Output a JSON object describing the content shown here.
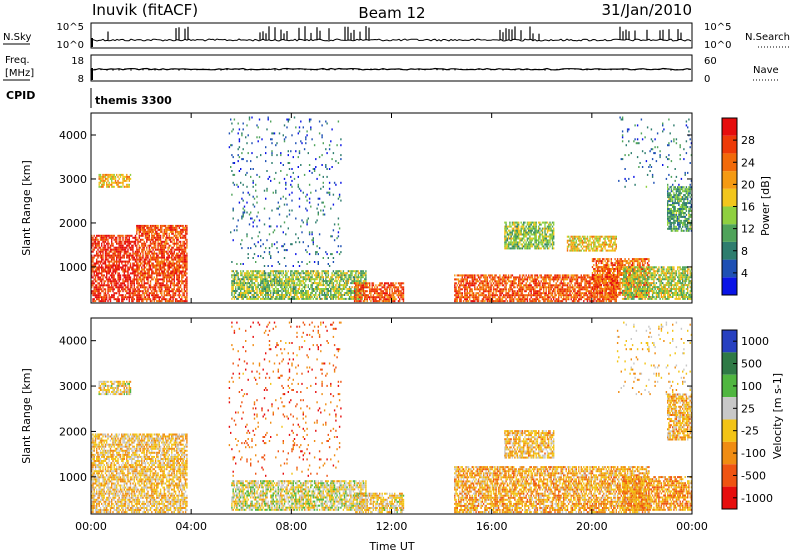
{
  "header": {
    "station": "Inuvik (fitACF)",
    "beam": "Beam 12",
    "date": "31/Jan/2010"
  },
  "strip": {
    "nsky_label": "N.Sky",
    "nsky_ticks": [
      "10^5",
      "10^0"
    ],
    "nsearch_label": "N.Search",
    "nsearch_ticks": [
      "10^5",
      "10^0"
    ],
    "freq_label": "Freq.",
    "freq_unit": "[MHz]",
    "freq_ticks": [
      "18",
      "8"
    ],
    "nave_label": "Nave",
    "nave_ticks": [
      "60",
      "0"
    ],
    "cpid_label": "CPID",
    "cpid_value": "themis 3300"
  },
  "colors": {
    "power": [
      "#0a14e6",
      "#1e50b4",
      "#2e7d6e",
      "#4fa35a",
      "#8fd040",
      "#f2c61c",
      "#f59a12",
      "#f26a0a",
      "#ee3a08",
      "#e60d0d"
    ],
    "velocity": [
      "#2740c0",
      "#2f7a46",
      "#50b640",
      "#c8c8c8",
      "#f3c416",
      "#f08c12",
      "#ef5412",
      "#e60d0d"
    ]
  },
  "chart_data": [
    {
      "type": "heatmap",
      "panel": "power",
      "ylabel": "Slant Range [km]",
      "xlabel": "Time UT",
      "x_ticks": [
        "00:00",
        "04:00",
        "08:00",
        "12:00",
        "16:00",
        "20:00",
        "00:00"
      ],
      "xlim_hours": [
        0,
        24
      ],
      "y_ticks": [
        1000,
        2000,
        3000,
        4000
      ],
      "ylim": [
        180,
        4500
      ],
      "colorbar": {
        "label": "Power [dB]",
        "ticks": [
          "4",
          "8",
          "12",
          "16",
          "20",
          "24",
          "28"
        ],
        "range": [
          0,
          30
        ]
      },
      "regions": [
        {
          "t0": 0.0,
          "t1": 1.8,
          "r0": 200,
          "r1": 1700,
          "v": 27
        },
        {
          "t0": 1.8,
          "t1": 3.8,
          "r0": 200,
          "r1": 1950,
          "v": 25
        },
        {
          "t0": 0.3,
          "t1": 1.6,
          "r0": 2800,
          "r1": 3100,
          "v": 18
        },
        {
          "t0": 5.6,
          "t1": 11.0,
          "r0": 250,
          "r1": 900,
          "v": 13
        },
        {
          "t0": 10.5,
          "t1": 12.5,
          "r0": 200,
          "r1": 650,
          "v": 24
        },
        {
          "t0": 14.5,
          "t1": 21.0,
          "r0": 200,
          "r1": 800,
          "v": 24
        },
        {
          "t0": 20.0,
          "t1": 22.3,
          "r0": 300,
          "r1": 1200,
          "v": 23
        },
        {
          "t0": 16.5,
          "t1": 18.5,
          "r0": 1400,
          "r1": 2000,
          "v": 13
        },
        {
          "t0": 19.0,
          "t1": 21.0,
          "r0": 1350,
          "r1": 1700,
          "v": 17
        },
        {
          "t0": 21.2,
          "t1": 24.0,
          "r0": 250,
          "r1": 1000,
          "v": 14
        },
        {
          "t0": 23.0,
          "t1": 24.0,
          "r0": 1800,
          "r1": 2800,
          "v": 10
        },
        {
          "t0": 5.5,
          "t1": 10.0,
          "r0": 1000,
          "r1": 4400,
          "v": 6,
          "sparse": true
        },
        {
          "t0": 21.0,
          "t1": 24.0,
          "r0": 2800,
          "r1": 4400,
          "v": 7,
          "sparse": true
        }
      ]
    },
    {
      "type": "heatmap",
      "panel": "velocity",
      "ylabel": "Slant Range [km]",
      "xlabel": "Time UT",
      "x_ticks": [
        "00:00",
        "04:00",
        "08:00",
        "12:00",
        "16:00",
        "20:00",
        "00:00"
      ],
      "xlim_hours": [
        0,
        24
      ],
      "y_ticks": [
        1000,
        2000,
        3000,
        4000
      ],
      "ylim": [
        180,
        4500
      ],
      "colorbar": {
        "label": "Velocity [m s-1]",
        "ticks": [
          "1000",
          "500",
          "100",
          "25",
          "-25",
          "-100",
          "-500",
          "-1000"
        ],
        "range": [
          -1200,
          1200
        ]
      },
      "regions": [
        {
          "t0": 0.0,
          "t1": 3.8,
          "r0": 200,
          "r1": 1950,
          "v": -150
        },
        {
          "t0": 0.3,
          "t1": 1.6,
          "r0": 2800,
          "r1": 3100,
          "v": -60
        },
        {
          "t0": 5.6,
          "t1": 11.0,
          "r0": 250,
          "r1": 900,
          "v": 60
        },
        {
          "t0": 10.5,
          "t1": 12.5,
          "r0": 200,
          "r1": 650,
          "v": -80
        },
        {
          "t0": 14.5,
          "t1": 22.3,
          "r0": 200,
          "r1": 1200,
          "v": -300
        },
        {
          "t0": 16.5,
          "t1": 18.5,
          "r0": 1400,
          "r1": 2000,
          "v": -200
        },
        {
          "t0": 21.2,
          "t1": 24.0,
          "r0": 250,
          "r1": 1000,
          "v": -400
        },
        {
          "t0": 23.0,
          "t1": 24.0,
          "r0": 1800,
          "r1": 2800,
          "v": -250
        },
        {
          "t0": 5.5,
          "t1": 10.0,
          "r0": 1000,
          "r1": 4400,
          "v": -700,
          "sparse": true
        },
        {
          "t0": 21.0,
          "t1": 24.0,
          "r0": 2800,
          "r1": 4400,
          "v": -150,
          "sparse": true
        }
      ]
    }
  ]
}
